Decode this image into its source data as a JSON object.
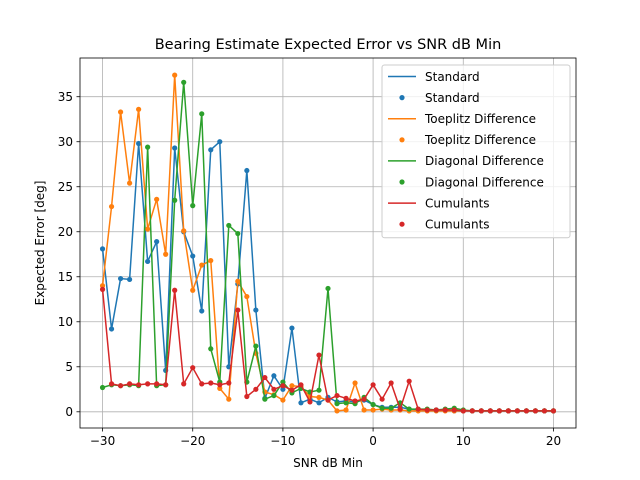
{
  "chart_data": {
    "type": "line",
    "title": "Bearing Estimate Expected Error vs SNR dB Min",
    "xlabel": "SNR dB Min",
    "ylabel": "Expected Error [deg]",
    "xlim": [
      -32.5,
      22.5
    ],
    "ylim": [
      -1.8,
      39.3
    ],
    "xticks": [
      -30,
      -20,
      -10,
      0,
      10,
      20
    ],
    "yticks": [
      0,
      5,
      10,
      15,
      20,
      25,
      30,
      35
    ],
    "grid": true,
    "legend_position": "upper right",
    "x": [
      -30,
      -29,
      -28,
      -27,
      -26,
      -25,
      -24,
      -23,
      -22,
      -21,
      -20,
      -19,
      -18,
      -17,
      -16,
      -15,
      -14,
      -13,
      -12,
      -11,
      -10,
      -9,
      -8,
      -7,
      -6,
      -5,
      -4,
      -3,
      -2,
      -1,
      0,
      1,
      2,
      3,
      4,
      5,
      6,
      7,
      8,
      9,
      10,
      11,
      12,
      13,
      14,
      15,
      16,
      17,
      18,
      19,
      20
    ],
    "series": [
      {
        "name": "Standard",
        "color": "#1f77b4",
        "values": [
          18.1,
          9.2,
          14.8,
          14.7,
          29.8,
          16.7,
          18.9,
          4.6,
          29.3,
          20.0,
          17.3,
          11.2,
          29.1,
          30.0,
          5.0,
          14.2,
          26.8,
          11.3,
          1.5,
          4.0,
          2.5,
          9.3,
          1.0,
          1.4,
          1.0,
          1.6,
          1.1,
          1.2,
          1.1,
          1.3,
          0.8,
          0.5,
          0.5,
          0.5,
          0.3,
          0.2,
          0.2,
          0.2,
          0.2,
          0.1,
          0.1,
          0.1,
          0.1,
          0.1,
          0.1,
          0.1,
          0.1,
          0.1,
          0.1,
          0.1,
          0.1
        ]
      },
      {
        "name": "Toeplitz Difference",
        "color": "#ff7f0e",
        "values": [
          14.0,
          22.8,
          33.3,
          25.4,
          33.6,
          20.3,
          23.6,
          17.5,
          37.4,
          20.1,
          13.5,
          16.3,
          16.8,
          2.6,
          1.4,
          14.5,
          12.8,
          6.5,
          2.2,
          1.9,
          1.3,
          2.9,
          2.8,
          1.7,
          1.6,
          1.3,
          0.1,
          0.2,
          3.2,
          0.2,
          0.2,
          0.3,
          0.2,
          0.2,
          0.1,
          0.1,
          0.1,
          0.1,
          0.1,
          0.1,
          0.1,
          0.1,
          0.1,
          0.1,
          0.1,
          0.1,
          0.1,
          0.1,
          0.1,
          0.1,
          0.1
        ]
      },
      {
        "name": "Diagonal Difference",
        "color": "#2ca02c",
        "values": [
          2.7,
          3.0,
          2.9,
          3.0,
          2.9,
          29.4,
          2.9,
          3.0,
          23.5,
          36.6,
          22.9,
          33.1,
          7.0,
          3.3,
          20.7,
          19.8,
          3.3,
          7.3,
          1.4,
          1.8,
          3.3,
          2.1,
          2.6,
          2.2,
          2.4,
          13.7,
          0.9,
          1.0,
          0.9,
          1.6,
          0.8,
          0.4,
          0.4,
          1.0,
          0.3,
          0.3,
          0.3,
          0.2,
          0.3,
          0.4,
          0.2,
          0.1,
          0.1,
          0.1,
          0.1,
          0.1,
          0.1,
          0.1,
          0.1,
          0.1,
          0.1
        ]
      },
      {
        "name": "Cumulants",
        "color": "#d62728",
        "values": [
          13.6,
          3.1,
          2.9,
          3.1,
          3.0,
          3.1,
          3.1,
          3.0,
          13.5,
          3.1,
          4.9,
          3.1,
          3.2,
          3.0,
          3.2,
          11.3,
          1.7,
          2.5,
          3.8,
          2.5,
          2.9,
          2.4,
          3.0,
          1.1,
          6.3,
          1.3,
          1.8,
          1.5,
          1.2,
          1.4,
          3.0,
          1.4,
          3.2,
          0.3,
          3.4,
          0.3,
          0.2,
          0.2,
          0.2,
          0.2,
          0.1,
          0.1,
          0.1,
          0.1,
          0.1,
          0.1,
          0.1,
          0.1,
          0.1,
          0.1,
          0.1
        ]
      }
    ],
    "legend_entries": [
      {
        "label": "Standard",
        "series": 0,
        "kind": "line"
      },
      {
        "label": "Standard",
        "series": 0,
        "kind": "marker"
      },
      {
        "label": "Toeplitz Difference",
        "series": 1,
        "kind": "line"
      },
      {
        "label": "Toeplitz Difference",
        "series": 1,
        "kind": "marker"
      },
      {
        "label": "Diagonal Difference",
        "series": 2,
        "kind": "line"
      },
      {
        "label": "Diagonal Difference",
        "series": 2,
        "kind": "marker"
      },
      {
        "label": "Cumulants",
        "series": 3,
        "kind": "line"
      },
      {
        "label": "Cumulants",
        "series": 3,
        "kind": "marker"
      }
    ]
  }
}
